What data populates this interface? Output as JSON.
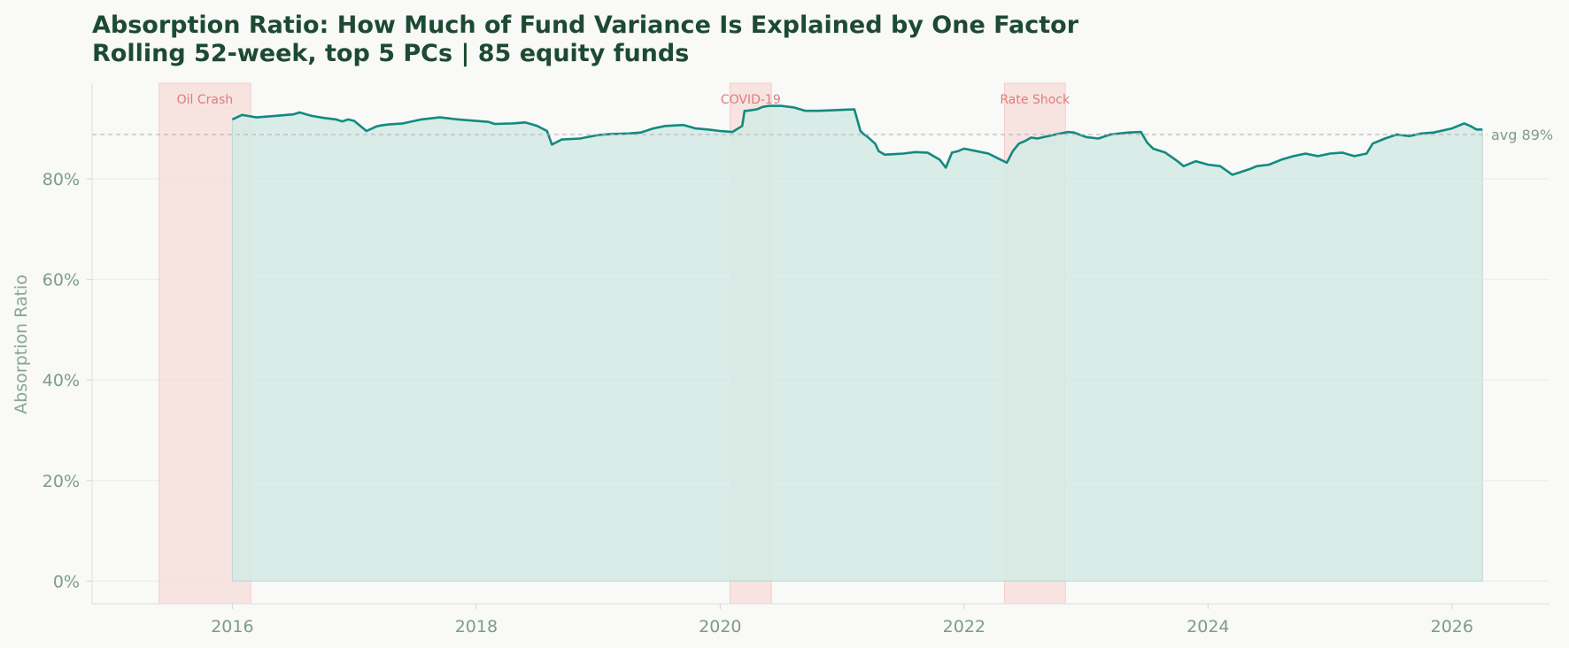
{
  "chart_data": {
    "type": "area",
    "title": "Absorption Ratio: How Much of Fund Variance Is Explained by One Factor",
    "subtitle": "Rolling 52-week, top 5 PCs  |  85 equity funds",
    "xlabel": "",
    "ylabel": "Absorption Ratio",
    "xlim": [
      2014.85,
      2026.8
    ],
    "ylim": [
      -0.045,
      0.99
    ],
    "x_ticks": [
      {
        "value": 2016,
        "label": "2016"
      },
      {
        "value": 2018,
        "label": "2018"
      },
      {
        "value": 2020,
        "label": "2020"
      },
      {
        "value": 2022,
        "label": "2022"
      },
      {
        "value": 2024,
        "label": "2024"
      },
      {
        "value": 2026,
        "label": "2026"
      }
    ],
    "y_ticks": [
      {
        "value": 0.0,
        "label": "0%"
      },
      {
        "value": 0.2,
        "label": "20%"
      },
      {
        "value": 0.4,
        "label": "40%"
      },
      {
        "value": 0.6,
        "label": "60%"
      },
      {
        "value": 0.8,
        "label": "80%"
      }
    ],
    "grid": true,
    "colors": {
      "line": "#128a7e",
      "fill": "#d5eae6",
      "event": "#f6dcd9",
      "event_text": "#e07b7b",
      "avg_line": "#b5b5b5",
      "title": "#1c4a32",
      "tick": "#7d9b8c"
    },
    "average": {
      "value": 0.888,
      "label": "avg 89%"
    },
    "events": [
      {
        "label": "Oil Crash",
        "start": 2015.4,
        "end": 2016.15
      },
      {
        "label": "COVID-19",
        "start": 2020.08,
        "end": 2020.42
      },
      {
        "label": "Rate Shock",
        "start": 2022.33,
        "end": 2022.83
      }
    ],
    "series": [
      {
        "x": [
          2016.0,
          2016.08,
          2016.2,
          2016.35,
          2016.5,
          2016.55,
          2016.65,
          2016.75,
          2016.85,
          2016.9,
          2016.95,
          2017.0,
          2017.1,
          2017.18,
          2017.22,
          2017.28,
          2017.4,
          2017.55,
          2017.7,
          2017.85,
          2018.0,
          2018.1,
          2018.15,
          2018.3,
          2018.4,
          2018.5,
          2018.58,
          2018.62,
          2018.7,
          2018.85,
          2019.0,
          2019.1,
          2019.25,
          2019.35,
          2019.45,
          2019.55,
          2019.7,
          2019.8,
          2019.9,
          2020.0,
          2020.1,
          2020.18,
          2020.2,
          2020.22,
          2020.3,
          2020.35,
          2020.4,
          2020.5,
          2020.6,
          2020.7,
          2020.8,
          2020.9,
          2021.0,
          2021.1,
          2021.15,
          2021.18,
          2021.2,
          2021.27,
          2021.3,
          2021.35,
          2021.5,
          2021.6,
          2021.7,
          2021.8,
          2021.85,
          2021.9,
          2021.95,
          2022.0,
          2022.1,
          2022.2,
          2022.3,
          2022.35,
          2022.4,
          2022.45,
          2022.5,
          2022.55,
          2022.6,
          2022.75,
          2022.85,
          2022.9,
          2023.0,
          2023.1,
          2023.2,
          2023.35,
          2023.45,
          2023.5,
          2023.55,
          2023.65,
          2023.75,
          2023.8,
          2023.9,
          2024.0,
          2024.1,
          2024.2,
          2024.25,
          2024.35,
          2024.4,
          2024.5,
          2024.6,
          2024.7,
          2024.8,
          2024.9,
          2025.0,
          2025.1,
          2025.2,
          2025.3,
          2025.35,
          2025.45,
          2025.55,
          2025.65,
          2025.75,
          2025.85,
          2026.0,
          2026.1,
          2026.15,
          2026.2,
          2026.25
        ],
        "y": [
          0.918,
          0.927,
          0.922,
          0.925,
          0.928,
          0.932,
          0.925,
          0.921,
          0.918,
          0.914,
          0.918,
          0.915,
          0.895,
          0.904,
          0.906,
          0.908,
          0.91,
          0.918,
          0.922,
          0.918,
          0.915,
          0.913,
          0.909,
          0.91,
          0.912,
          0.905,
          0.895,
          0.868,
          0.878,
          0.88,
          0.887,
          0.889,
          0.89,
          0.892,
          0.9,
          0.905,
          0.907,
          0.9,
          0.898,
          0.895,
          0.893,
          0.905,
          0.935,
          0.935,
          0.938,
          0.943,
          0.945,
          0.945,
          0.942,
          0.935,
          0.935,
          0.936,
          0.937,
          0.938,
          0.895,
          0.888,
          0.885,
          0.87,
          0.855,
          0.848,
          0.85,
          0.853,
          0.852,
          0.838,
          0.822,
          0.852,
          0.855,
          0.86,
          0.855,
          0.85,
          0.838,
          0.832,
          0.855,
          0.87,
          0.875,
          0.882,
          0.88,
          0.888,
          0.893,
          0.892,
          0.883,
          0.88,
          0.888,
          0.892,
          0.893,
          0.872,
          0.86,
          0.852,
          0.835,
          0.825,
          0.835,
          0.828,
          0.825,
          0.808,
          0.812,
          0.82,
          0.825,
          0.828,
          0.838,
          0.845,
          0.85,
          0.845,
          0.85,
          0.852,
          0.845,
          0.85,
          0.87,
          0.88,
          0.888,
          0.885,
          0.89,
          0.892,
          0.9,
          0.91,
          0.905,
          0.898,
          0.898
        ]
      }
    ]
  }
}
